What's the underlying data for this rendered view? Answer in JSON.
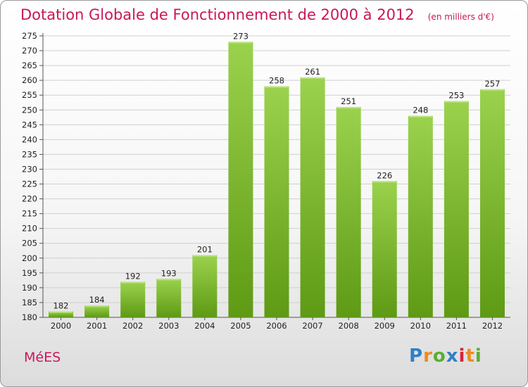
{
  "title": "Dotation Globale de Fonctionnement de 2000 à 2012",
  "unit_label": "(en milliers d'€)",
  "commune": "MéES",
  "logo": {
    "text": "Proxiti",
    "letters": [
      {
        "ch": "P",
        "color": "#2f7fc6"
      },
      {
        "ch": "r",
        "color": "#f08a1c"
      },
      {
        "ch": "o",
        "color": "#5aae32"
      },
      {
        "ch": "x",
        "color": "#2f7fc6"
      },
      {
        "ch": "i",
        "color": "#d8233c"
      },
      {
        "ch": "t",
        "color": "#f08a1c"
      },
      {
        "ch": "i",
        "color": "#5aae32"
      }
    ]
  },
  "colors": {
    "bar_top": "#9bd24d",
    "bar_bottom": "#5e9a14",
    "title": "#c8185a",
    "grid": "#d0d0d0"
  },
  "chart_data": {
    "type": "bar",
    "title": "Dotation Globale de Fonctionnement de 2000 à 2012",
    "categories": [
      "2000",
      "2001",
      "2002",
      "2003",
      "2004",
      "2005",
      "2006",
      "2007",
      "2008",
      "2009",
      "2010",
      "2011",
      "2012"
    ],
    "values": [
      182,
      184,
      192,
      193,
      201,
      273,
      258,
      261,
      251,
      226,
      248,
      253,
      257
    ],
    "ylim": [
      180,
      275
    ],
    "ytick_step": 5,
    "xlabel": "",
    "ylabel": "",
    "grid": true,
    "data_labels": true
  }
}
